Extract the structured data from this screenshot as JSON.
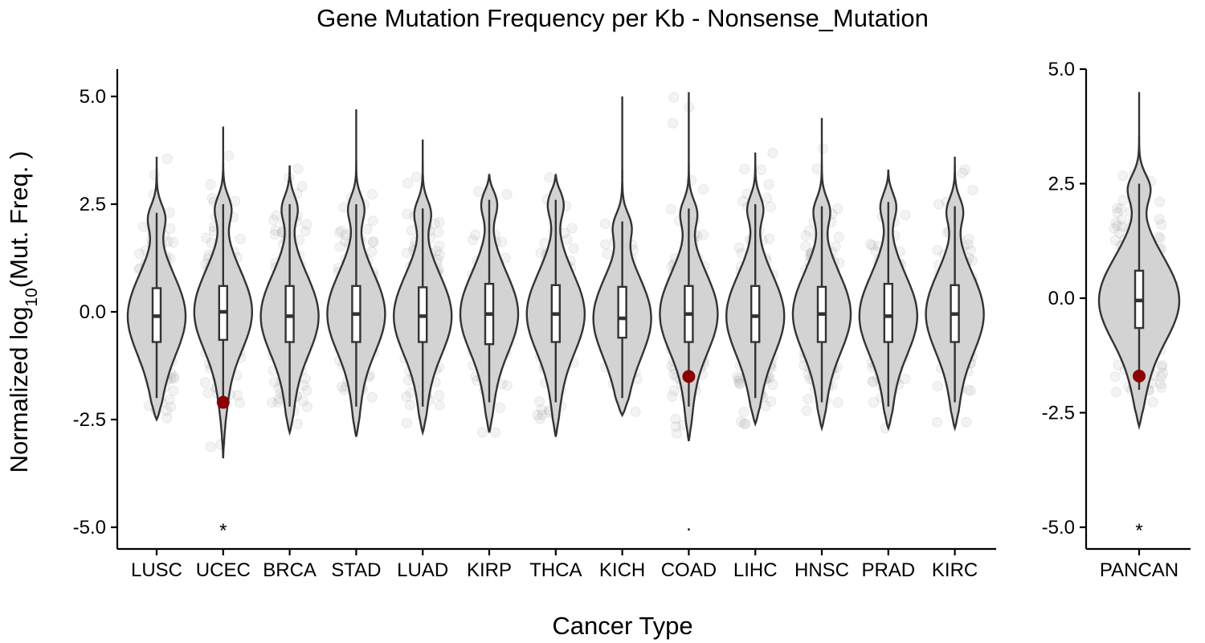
{
  "chart_data": [
    {
      "type": "violin",
      "title": "Gene Mutation Frequency per Kb - Nonsense_Mutation",
      "xlabel": "Cancer Type",
      "ylabel": "Normalized log10(Mut. Freq. )",
      "ylabel_parts": {
        "prefix": "Normalized log",
        "sub": "10",
        "suffix": "(Mut. Freq. )"
      },
      "ylim": [
        -5.5,
        5.6
      ],
      "yticks": [
        5.0,
        2.5,
        0.0,
        -2.5,
        -5.0
      ],
      "ytick_labels": [
        "5.0",
        "2.5",
        "0.0",
        "-2.5",
        "-5.0"
      ],
      "colors": {
        "violin_fill": "#d3d3d3",
        "outline": "#333333",
        "highlight": "#8b0000",
        "jitter": "#9a9a9a"
      },
      "grid": false,
      "categories": [
        "LUSC",
        "UCEC",
        "BRCA",
        "STAD",
        "LUAD",
        "KIRP",
        "THCA",
        "KICH",
        "COAD",
        "LIHC",
        "HNSC",
        "PRAD",
        "KIRC"
      ],
      "series": [
        {
          "min": -2.5,
          "max": 3.6,
          "q1": -0.7,
          "median": -0.1,
          "q3": 0.55,
          "lw": -2.0,
          "uw": 2.3,
          "annotation": "",
          "highlight": null,
          "density": 1.0
        },
        {
          "min": -3.4,
          "max": 4.3,
          "q1": -0.65,
          "median": 0.0,
          "q3": 0.6,
          "lw": -2.1,
          "uw": 2.5,
          "annotation": "*",
          "highlight": -2.1,
          "density": 1.0
        },
        {
          "min": -2.8,
          "max": 3.4,
          "q1": -0.7,
          "median": -0.1,
          "q3": 0.6,
          "lw": -2.2,
          "uw": 2.5,
          "annotation": "",
          "highlight": null,
          "density": 1.0
        },
        {
          "min": -2.9,
          "max": 4.7,
          "q1": -0.7,
          "median": -0.05,
          "q3": 0.6,
          "lw": -2.2,
          "uw": 2.5,
          "annotation": "",
          "highlight": null,
          "density": 1.0
        },
        {
          "min": -2.8,
          "max": 4.0,
          "q1": -0.7,
          "median": -0.1,
          "q3": 0.57,
          "lw": -2.2,
          "uw": 2.4,
          "annotation": "",
          "highlight": null,
          "density": 1.0
        },
        {
          "min": -2.8,
          "max": 3.2,
          "q1": -0.75,
          "median": -0.05,
          "q3": 0.65,
          "lw": -2.1,
          "uw": 2.6,
          "annotation": "",
          "highlight": null,
          "density": 0.6
        },
        {
          "min": -2.9,
          "max": 3.2,
          "q1": -0.7,
          "median": -0.05,
          "q3": 0.62,
          "lw": -2.1,
          "uw": 2.6,
          "annotation": "",
          "highlight": null,
          "density": 0.6
        },
        {
          "min": -2.4,
          "max": 5.0,
          "q1": -0.6,
          "median": -0.15,
          "q3": 0.58,
          "lw": -2.0,
          "uw": 2.1,
          "annotation": "",
          "highlight": null,
          "density": 0.35
        },
        {
          "min": -3.0,
          "max": 5.1,
          "q1": -0.7,
          "median": -0.05,
          "q3": 0.6,
          "lw": -2.2,
          "uw": 2.4,
          "annotation": ".",
          "highlight": -1.5,
          "density": 1.0
        },
        {
          "min": -2.6,
          "max": 3.7,
          "q1": -0.7,
          "median": -0.1,
          "q3": 0.6,
          "lw": -2.0,
          "uw": 2.5,
          "annotation": "",
          "highlight": null,
          "density": 1.0
        },
        {
          "min": -2.7,
          "max": 4.5,
          "q1": -0.7,
          "median": -0.05,
          "q3": 0.58,
          "lw": -2.1,
          "uw": 2.45,
          "annotation": "",
          "highlight": null,
          "density": 1.0
        },
        {
          "min": -2.7,
          "max": 3.3,
          "q1": -0.7,
          "median": -0.1,
          "q3": 0.65,
          "lw": -2.2,
          "uw": 2.55,
          "annotation": "",
          "highlight": null,
          "density": 0.8
        },
        {
          "min": -2.7,
          "max": 3.6,
          "q1": -0.7,
          "median": -0.05,
          "q3": 0.62,
          "lw": -2.1,
          "uw": 2.45,
          "annotation": "",
          "highlight": null,
          "density": 0.8
        }
      ]
    },
    {
      "type": "violin",
      "ylim": [
        -5.5,
        5.6
      ],
      "yticks": [
        5.0,
        2.5,
        0.0,
        -2.5,
        -5.0
      ],
      "ytick_labels": [
        "5.0",
        "2.5",
        "0.0",
        "-2.5",
        "-5.0"
      ],
      "grid": false,
      "categories": [
        "PANCAN"
      ],
      "series": [
        {
          "min": -2.8,
          "max": 4.5,
          "q1": -0.65,
          "median": -0.05,
          "q3": 0.6,
          "lw": -2.0,
          "uw": 2.5,
          "annotation": "*",
          "highlight": -1.7,
          "density": 1.6
        }
      ]
    }
  ]
}
